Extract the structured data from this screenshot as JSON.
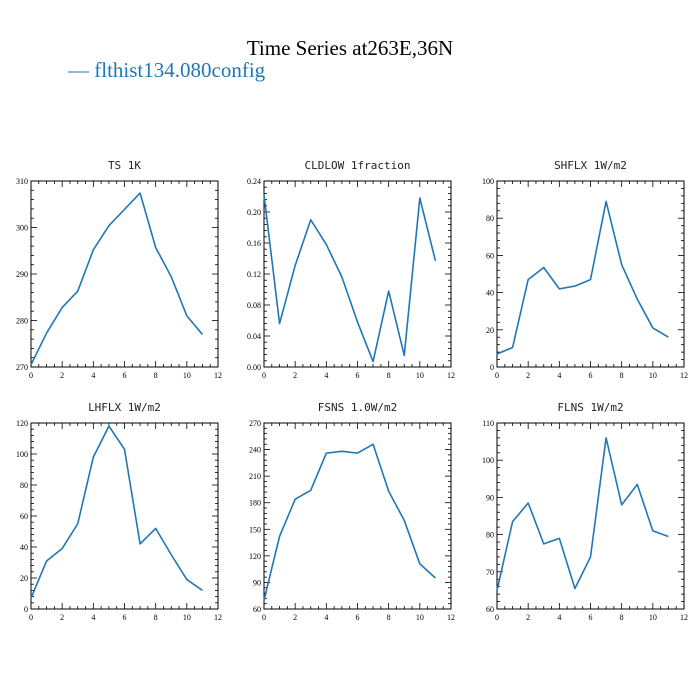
{
  "figure": {
    "title": "Time Series at263E,36N",
    "legend_label": "flthist134.080config",
    "legend_marker": "—",
    "series_color": "#1f77b4"
  },
  "chart_data": [
    {
      "type": "line",
      "title": "TS   1K",
      "xlim": [
        0,
        12
      ],
      "ylim": [
        270,
        310
      ],
      "xticks": [
        0,
        2,
        4,
        6,
        8,
        10,
        12
      ],
      "yticks": [
        270,
        280,
        290,
        300,
        310
      ],
      "ytick_labels": [
        "270",
        "280",
        "290",
        "300",
        "310"
      ],
      "x": [
        0,
        1,
        2,
        3,
        4,
        5,
        6,
        7,
        8,
        9,
        10,
        11
      ],
      "values": [
        270.5,
        277.3,
        282.8,
        286.3,
        295.2,
        300.4,
        303.9,
        307.4,
        295.7,
        289.4,
        281.0,
        277.0
      ]
    },
    {
      "type": "line",
      "title": "CLDLOW   1fraction",
      "xlim": [
        0,
        12
      ],
      "ylim": [
        0,
        0.24
      ],
      "xticks": [
        0,
        2,
        4,
        6,
        8,
        10,
        12
      ],
      "yticks": [
        0,
        0.04,
        0.08,
        0.12,
        0.16,
        0.2,
        0.24
      ],
      "ytick_labels": [
        "0.00",
        "0.04",
        "0.08",
        "0.12",
        "0.16",
        "0.20",
        "0.24"
      ],
      "x": [
        0,
        1,
        2,
        3,
        4,
        5,
        6,
        7,
        8,
        9,
        10,
        11
      ],
      "values": [
        0.222,
        0.056,
        0.131,
        0.19,
        0.158,
        0.116,
        0.058,
        0.007,
        0.098,
        0.015,
        0.218,
        0.137
      ]
    },
    {
      "type": "line",
      "title": "SHFLX   1W/m2",
      "xlim": [
        0,
        12
      ],
      "ylim": [
        0,
        100
      ],
      "xticks": [
        0,
        2,
        4,
        6,
        8,
        10,
        12
      ],
      "yticks": [
        0,
        20,
        40,
        60,
        80,
        100
      ],
      "ytick_labels": [
        "0",
        "20",
        "40",
        "60",
        "80",
        "100"
      ],
      "x": [
        0,
        1,
        2,
        3,
        4,
        5,
        6,
        7,
        8,
        9,
        10,
        11
      ],
      "values": [
        7,
        10.5,
        47,
        53.5,
        42,
        43.5,
        47,
        89,
        55,
        36.5,
        21,
        16
      ]
    },
    {
      "type": "line",
      "title": "LHFLX   1W/m2",
      "xlim": [
        0,
        12
      ],
      "ylim": [
        0,
        120
      ],
      "xticks": [
        0,
        2,
        4,
        6,
        8,
        10,
        12
      ],
      "yticks": [
        0,
        20,
        40,
        60,
        80,
        100,
        120
      ],
      "ytick_labels": [
        "0",
        "20",
        "40",
        "60",
        "80",
        "100",
        "120"
      ],
      "x": [
        0,
        1,
        2,
        3,
        4,
        5,
        6,
        7,
        8,
        9,
        10,
        11
      ],
      "values": [
        7,
        31,
        39,
        55,
        98,
        118,
        103,
        42,
        52,
        35,
        19,
        12
      ]
    },
    {
      "type": "line",
      "title": "FSNS   1.0W/m2",
      "xlim": [
        0,
        12
      ],
      "ylim": [
        60,
        270
      ],
      "xticks": [
        0,
        2,
        4,
        6,
        8,
        10,
        12
      ],
      "yticks": [
        60,
        90,
        120,
        150,
        180,
        210,
        240,
        270
      ],
      "ytick_labels": [
        "60",
        "90",
        "120",
        "150",
        "180",
        "210",
        "240",
        "270"
      ],
      "x": [
        0,
        1,
        2,
        3,
        4,
        5,
        6,
        7,
        8,
        9,
        10,
        11
      ],
      "values": [
        70,
        142,
        184,
        194,
        236,
        238,
        236,
        246,
        193,
        160,
        111,
        95
      ]
    },
    {
      "type": "line",
      "title": "FLNS   1W/m2",
      "xlim": [
        0,
        12
      ],
      "ylim": [
        60,
        110
      ],
      "xticks": [
        0,
        2,
        4,
        6,
        8,
        10,
        12
      ],
      "yticks": [
        60,
        70,
        80,
        90,
        100,
        110
      ],
      "ytick_labels": [
        "60",
        "70",
        "80",
        "90",
        "100",
        "110"
      ],
      "x": [
        0,
        1,
        2,
        3,
        4,
        5,
        6,
        7,
        8,
        9,
        10,
        11
      ],
      "values": [
        65,
        83.5,
        88.5,
        77.5,
        79,
        65.5,
        74,
        106,
        88,
        93.5,
        81,
        79.5
      ]
    }
  ]
}
